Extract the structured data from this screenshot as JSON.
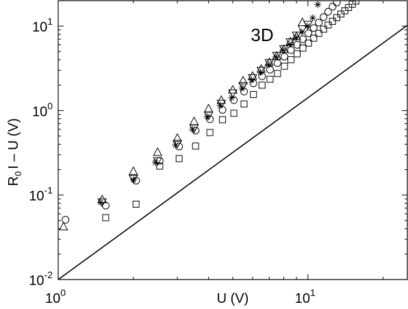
{
  "chart_data": {
    "type": "scatter",
    "annotation": "3D",
    "xlabel": "U (V)",
    "ylabel_main": "R",
    "ylabel_sub": "0",
    "ylabel_rest": "I – U (V)",
    "xscale": "log",
    "yscale": "log",
    "xlim": [
      1,
      25
    ],
    "ylim": [
      0.01,
      20
    ],
    "xticks": [
      {
        "value": 1,
        "base": "10",
        "exp": "0"
      },
      {
        "value": 10,
        "base": "10",
        "exp": "1"
      }
    ],
    "yticks": [
      {
        "value": 0.01,
        "base": "10",
        "exp": "-2"
      },
      {
        "value": 0.1,
        "base": "10",
        "exp": "-1"
      },
      {
        "value": 1,
        "base": "10",
        "exp": "0"
      },
      {
        "value": 10,
        "base": "10",
        "exp": "1"
      }
    ],
    "reference_line": {
      "x": [
        1,
        25
      ],
      "y": [
        0.01,
        10.2
      ]
    },
    "series": [
      {
        "marker": "triangle-up",
        "points": [
          [
            1.05,
            0.042
          ],
          [
            1.5,
            0.088
          ],
          [
            2.0,
            0.19
          ],
          [
            2.5,
            0.32
          ],
          [
            3.0,
            0.47
          ],
          [
            3.5,
            0.74
          ],
          [
            4.0,
            1.05
          ],
          [
            4.5,
            1.32
          ],
          [
            5.0,
            1.75
          ],
          [
            5.5,
            2.25
          ],
          [
            6.0,
            2.55
          ],
          [
            6.5,
            3.1
          ],
          [
            7.0,
            3.7
          ],
          [
            7.5,
            4.4
          ],
          [
            8.0,
            5.3
          ],
          [
            8.5,
            6.5
          ],
          [
            9.0,
            7.5
          ],
          [
            9.5,
            11.0
          ],
          [
            10.0,
            22.0
          ]
        ]
      },
      {
        "marker": "triangle-down",
        "points": [
          [
            1.5,
            0.083
          ],
          [
            2.0,
            0.157
          ],
          [
            2.5,
            0.255
          ],
          [
            3.0,
            0.41
          ],
          [
            3.5,
            0.62
          ],
          [
            4.0,
            0.88
          ],
          [
            4.5,
            1.22
          ],
          [
            5.0,
            1.62
          ],
          [
            5.5,
            1.98
          ],
          [
            6.0,
            2.45
          ],
          [
            6.5,
            3.0
          ],
          [
            7.0,
            3.7
          ],
          [
            7.5,
            4.5
          ],
          [
            8.0,
            5.4
          ],
          [
            8.5,
            6.5
          ],
          [
            9.0,
            7.8
          ],
          [
            9.5,
            9.3
          ],
          [
            10.0,
            10.5
          ]
        ]
      },
      {
        "marker": "asterisk",
        "points": [
          [
            1.48,
            0.082
          ],
          [
            2.0,
            0.151
          ],
          [
            2.45,
            0.243
          ],
          [
            2.95,
            0.39
          ],
          [
            3.45,
            0.6
          ],
          [
            3.95,
            0.85
          ],
          [
            4.45,
            1.15
          ],
          [
            4.95,
            1.42
          ],
          [
            5.45,
            1.85
          ],
          [
            5.95,
            2.3
          ],
          [
            6.45,
            2.85
          ],
          [
            6.95,
            3.5
          ],
          [
            7.45,
            4.3
          ],
          [
            7.95,
            5.2
          ],
          [
            8.45,
            6.1
          ],
          [
            8.95,
            7.3
          ],
          [
            9.45,
            8.5
          ],
          [
            9.95,
            10.0
          ],
          [
            10.45,
            12.5
          ],
          [
            10.95,
            18.0
          ]
        ]
      },
      {
        "marker": "circle",
        "points": [
          [
            1.07,
            0.051
          ],
          [
            1.55,
            0.075
          ],
          [
            2.05,
            0.148
          ],
          [
            2.55,
            0.255
          ],
          [
            3.05,
            0.375
          ],
          [
            3.55,
            0.58
          ],
          [
            4.05,
            0.79
          ],
          [
            4.55,
            1.02
          ],
          [
            5.05,
            1.33
          ],
          [
            5.55,
            1.68
          ],
          [
            6.05,
            2.1
          ],
          [
            6.55,
            2.55
          ],
          [
            7.05,
            3.05
          ],
          [
            7.55,
            3.65
          ],
          [
            8.05,
            4.35
          ],
          [
            8.55,
            5.2
          ],
          [
            9.05,
            6.0
          ],
          [
            9.55,
            7.0
          ],
          [
            10.05,
            8.2
          ],
          [
            10.55,
            9.5
          ],
          [
            11.05,
            11.0
          ],
          [
            11.55,
            12.8
          ],
          [
            12.05,
            14.8
          ],
          [
            12.55,
            17.0
          ],
          [
            13.05,
            19.0
          ]
        ]
      },
      {
        "marker": "square",
        "points": [
          [
            1.55,
            0.054
          ],
          [
            2.05,
            0.078
          ],
          [
            2.55,
            0.22
          ],
          [
            3.05,
            0.27
          ],
          [
            3.55,
            0.38
          ],
          [
            4.05,
            0.55
          ],
          [
            4.55,
            0.78
          ],
          [
            5.05,
            0.93
          ],
          [
            5.55,
            1.2
          ],
          [
            6.05,
            1.55
          ],
          [
            6.55,
            2.0
          ],
          [
            7.05,
            2.35
          ],
          [
            7.55,
            2.75
          ],
          [
            8.05,
            3.35
          ],
          [
            8.55,
            4.0
          ],
          [
            9.05,
            4.7
          ],
          [
            9.55,
            5.5
          ],
          [
            10.05,
            6.3
          ],
          [
            10.55,
            7.2
          ],
          [
            11.05,
            8.2
          ],
          [
            11.55,
            9.2
          ],
          [
            12.05,
            10.3
          ],
          [
            12.55,
            11.4
          ],
          [
            13.05,
            12.6
          ],
          [
            13.55,
            13.9
          ],
          [
            14.05,
            15.2
          ],
          [
            14.55,
            16.6
          ],
          [
            15.05,
            18.2
          ],
          [
            15.55,
            19.8
          ]
        ]
      }
    ]
  }
}
